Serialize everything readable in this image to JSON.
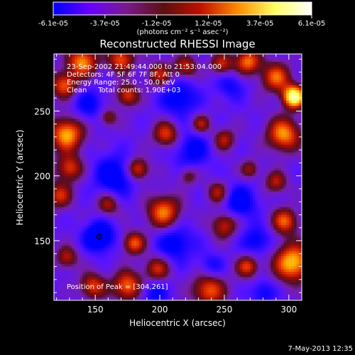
{
  "chart_data": {
    "type": "heatmap",
    "title": "Reconstructed RHESSI Image",
    "xlabel": "Heliocentric X (arcsec)",
    "ylabel": "Heliocentric Y (arcsec)",
    "xlim": [
      118,
      310
    ],
    "ylim": [
      104,
      294
    ],
    "x_ticks": [
      150,
      200,
      250,
      300
    ],
    "y_ticks": [
      150,
      200,
      250
    ],
    "colorbar": {
      "min": -6.1e-05,
      "max": 6.1e-05,
      "tick_labels": [
        "-6.1e-05",
        "-3.7e-05",
        "-1.2e-05",
        "1.2e-05",
        "3.7e-05",
        "6.1e-05"
      ],
      "unit_label": "(photons cm⁻² s⁻¹ asec⁻²)",
      "colors": [
        "#0000ff",
        "#6a00ff",
        "#7a1a8a",
        "#5a1010",
        "#c01000",
        "#ff8c00",
        "#ffff60",
        "#ffffff"
      ]
    },
    "annotations": [
      "23-Sep-2002 21:49:44.000 to 21:53:04.000",
      "Detectors: 4F 5F 6F 7F 8F, Att 0",
      "Energy Range: 25.0 - 50.0 keV",
      "Clean     Total counts: 1.90E+03"
    ],
    "peak_label": "Position of Peak = [304,261]",
    "peak": [
      304,
      261
    ],
    "min_marker": [
      153,
      153
    ],
    "grid": false
  },
  "footer": {
    "date": "7-May-2013 12:35"
  }
}
